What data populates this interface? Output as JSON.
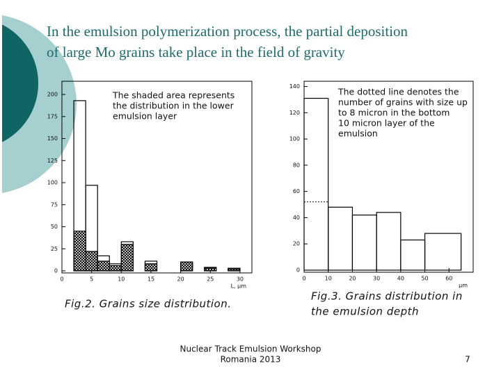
{
  "slide": {
    "title": [
      "In the emulsion polymerization process, the partial deposition",
      "of  large Mo grains take place in  the field of gravity"
    ],
    "footer": [
      "Nuclear Track Emulsion Workshop",
      "Romania 2013"
    ],
    "page": "7"
  },
  "chart_data": [
    {
      "type": "histogram",
      "caption": "Fig.2. Grains size distribution.",
      "x_label": "L, μm",
      "annotation": [
        "The shaded area represents",
        "the distribution in the lower",
        "emulsion layer"
      ],
      "bins": [
        2,
        4,
        6,
        8,
        10,
        12,
        14,
        16,
        18,
        20,
        22,
        24,
        26,
        28,
        30
      ],
      "series": [
        {
          "style": "open",
          "color": "#000000",
          "values": [
            193,
            97,
            17,
            8,
            33,
            0,
            11,
            0,
            0,
            10,
            0,
            4,
            0,
            3
          ]
        },
        {
          "style": "hatched",
          "color": "#000000",
          "values": [
            45,
            22,
            11,
            6,
            30,
            0,
            8,
            0,
            0,
            10,
            0,
            3,
            0,
            2
          ]
        }
      ],
      "xlim": [
        0,
        32
      ],
      "ylim": [
        0,
        215
      ],
      "xticks": [
        0,
        5,
        10,
        15,
        20,
        25,
        30
      ],
      "yticks": [
        0,
        25,
        50,
        75,
        100,
        125,
        150,
        175,
        200
      ]
    },
    {
      "type": "histogram",
      "caption": [
        "Fig.3. Grains distribution in",
        "the emulsion depth"
      ],
      "x_label": "μm",
      "annotation": [
        "The dotted line denotes the",
        "number of grains with size up",
        "to 8 micron in the bottom",
        "10 micron  layer of the",
        "emulsion"
      ],
      "bins": [
        0,
        10,
        20,
        30,
        40,
        50,
        65
      ],
      "series": [
        {
          "style": "open",
          "color": "#000000",
          "values": [
            131,
            48,
            42,
            44,
            23,
            28
          ]
        },
        {
          "style": "dotted",
          "color": "#000000",
          "values": [
            52,
            null,
            null,
            null,
            null,
            null
          ]
        }
      ],
      "xlim": [
        0,
        70
      ],
      "ylim": [
        0,
        144
      ],
      "xticks": [
        0,
        10,
        20,
        30,
        40,
        50,
        60
      ],
      "yticks": [
        0,
        20,
        40,
        60,
        80,
        100,
        120,
        140
      ]
    }
  ]
}
